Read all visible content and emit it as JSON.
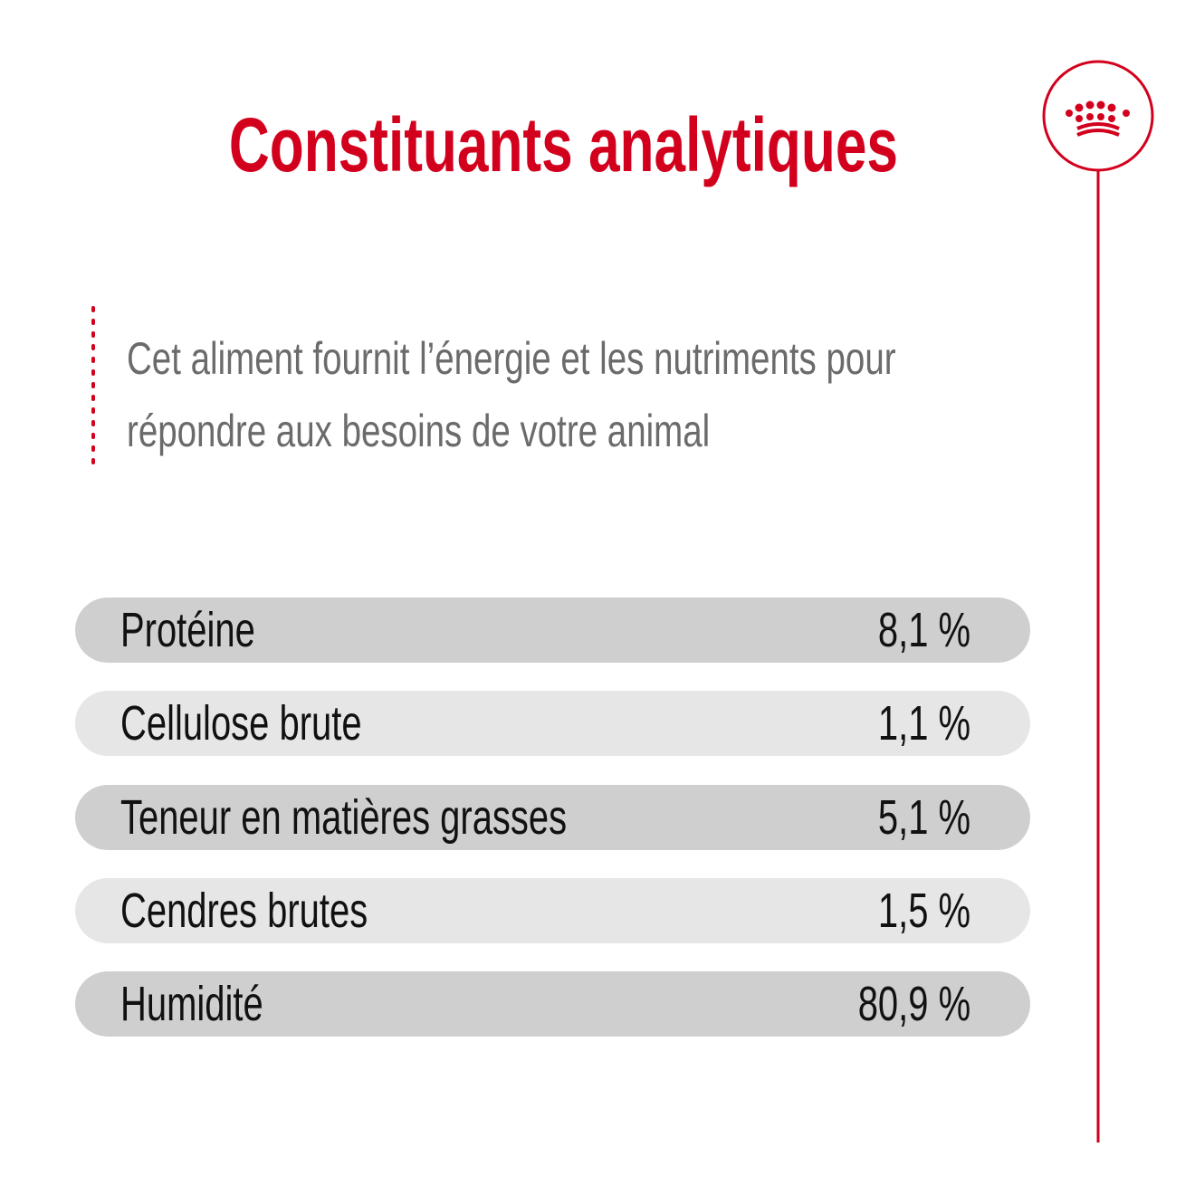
{
  "header": {
    "title": "Constituants analytiques"
  },
  "description": "Cet aliment fournit l’énergie et les nutriments pour répondre aux besoins de votre animal",
  "table": {
    "rows": [
      {
        "label": "Protéine",
        "value": "8,1 %"
      },
      {
        "label": "Cellulose brute",
        "value": "1,1 %"
      },
      {
        "label": "Teneur en matières grasses",
        "value": "5,1 %"
      },
      {
        "label": "Cendres brutes",
        "value": "1,5 %"
      },
      {
        "label": "Humidité",
        "value": "80,9 %"
      }
    ]
  }
}
